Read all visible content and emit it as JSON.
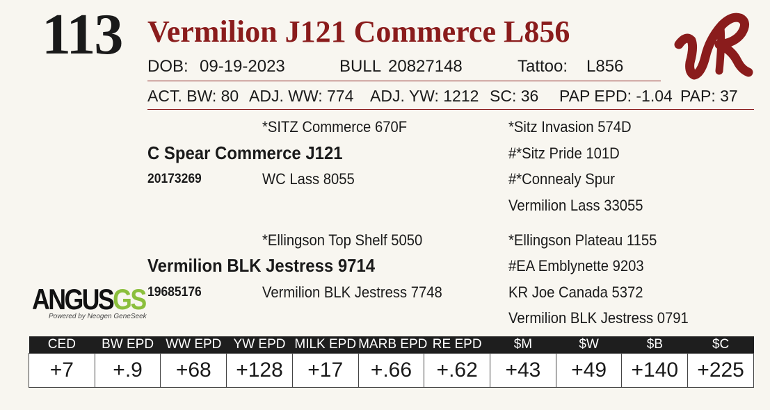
{
  "lot_number": "113",
  "animal_name": "Vermilion J121 Commerce L856",
  "info_line": {
    "dob_label": "DOB:",
    "dob_value": "09-19-2023",
    "sex_label": "BULL",
    "registration": "20827148",
    "tattoo_label": "Tattoo:",
    "tattoo_value": "L856"
  },
  "performance": {
    "act_bw": "ACT. BW: 80",
    "adj_ww": "ADJ. WW: 774",
    "adj_yw": "ADJ. YW: 1212",
    "sc": "SC: 36",
    "pap_epd": "PAP EPD: -1.04",
    "pap": "PAP: 37"
  },
  "pedigree": {
    "sire": {
      "name": "C Spear Commerce J121",
      "registration": "20173269",
      "sire": "*SITZ Commerce 670F",
      "dam": "WC Lass 8055",
      "sire_sire": "*Sitz Invasion 574D",
      "sire_dam": "#*Sitz Pride 101D",
      "dam_sire": "#*Connealy Spur",
      "dam_dam": "Vermilion Lass 33055"
    },
    "dam": {
      "name": "Vermilion BLK Jestress 9714",
      "registration": "19685176",
      "sire": "*Ellingson Top Shelf 5050",
      "dam": "Vermilion BLK Jestress 7748",
      "sire_sire": "*Ellingson Plateau 1155",
      "sire_dam": "#EA Emblynette 9203",
      "dam_sire": "KR Joe Canada 5372",
      "dam_dam": "Vermilion BLK Jestress 0791"
    }
  },
  "logos": {
    "ranch_brand": "VR",
    "angus_main": "ANGUS",
    "angus_gs": "GS",
    "angus_tagline": "Powered by Neogen GeneSeek"
  },
  "epd_table": {
    "headers": [
      "CED",
      "BW EPD",
      "WW EPD",
      "YW EPD",
      "MILK EPD",
      "MARB EPD",
      "RE EPD",
      "$M",
      "$W",
      "$B",
      "$C"
    ],
    "values": [
      "+7",
      "+.9",
      "+68",
      "+128",
      "+17",
      "+.66",
      "+.62",
      "+43",
      "+49",
      "+140",
      "+225"
    ]
  },
  "colors": {
    "accent": "#8a1c1c",
    "background": "#f8f6f0",
    "header_bg": "#1e1e1e",
    "angus_green": "#8bbf3c"
  }
}
